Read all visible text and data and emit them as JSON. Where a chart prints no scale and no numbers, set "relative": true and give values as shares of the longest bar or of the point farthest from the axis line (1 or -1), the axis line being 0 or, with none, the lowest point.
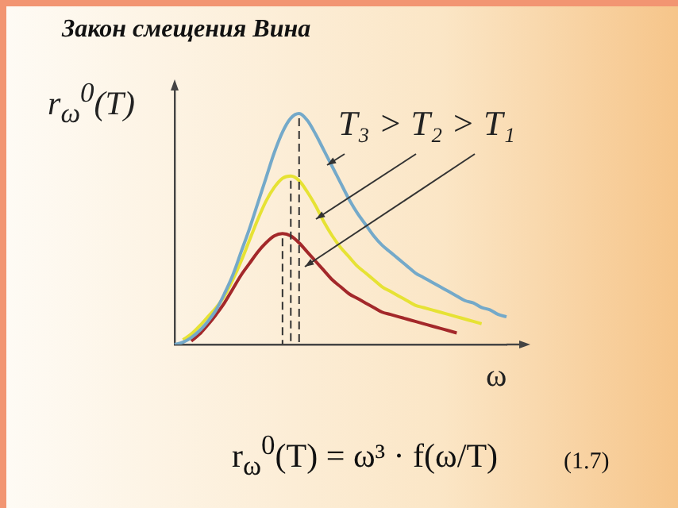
{
  "chart_data": {
    "type": "line",
    "title": "Закон смещения Вина",
    "xlabel": "ω",
    "ylabel": "r$_{ω}$$^{0}$(T)",
    "relative": true,
    "marker": "none",
    "annotations": [
      "T₃ > T₂ > T₁",
      "r$_{ω}$$^{0}$(T) = ω³ · f(ω/T)",
      "(1.7)"
    ],
    "categories": [
      null,
      null,
      null,
      null,
      null,
      null,
      null,
      null,
      null,
      null,
      null,
      null,
      null,
      null,
      null,
      null,
      null,
      null,
      null,
      null,
      null,
      null,
      null,
      null,
      null,
      null,
      null,
      null,
      null,
      null,
      null,
      null,
      null,
      null,
      null,
      null,
      null,
      null,
      null,
      null,
      null
    ],
    "series": [
      {
        "color": "#74a9c9",
        "values": [
          0,
          0.01,
          0.03,
          0.06,
          0.1,
          0.15,
          0.22,
          0.3,
          0.4,
          0.5,
          0.61,
          0.72,
          0.83,
          0.92,
          0.98,
          1,
          0.97,
          0.91,
          0.84,
          0.77,
          0.7,
          0.63,
          0.57,
          0.52,
          0.47,
          0.43,
          0.4,
          0.37,
          0.34,
          0.31,
          0.29,
          0.27,
          0.25,
          0.23,
          0.21,
          0.19,
          0.18,
          0.16,
          0.15,
          0.13,
          0.12
        ]
      },
      {
        "color": "#e6e234",
        "values": [
          null,
          0.02,
          0.045,
          0.08,
          0.12,
          0.16,
          0.21,
          0.28,
          0.36,
          0.45,
          0.54,
          0.62,
          0.68,
          0.72,
          0.73,
          0.71,
          0.66,
          0.6,
          0.53,
          0.47,
          0.42,
          0.38,
          0.34,
          0.31,
          0.28,
          0.25,
          0.23,
          0.21,
          0.19,
          0.17,
          0.16,
          0.15,
          0.14,
          0.13,
          0.12,
          0.11,
          0.1,
          0.09,
          null,
          null,
          null
        ]
      },
      {
        "color": "#a3282a",
        "values": [
          null,
          null,
          0.015,
          0.045,
          0.085,
          0.13,
          0.18,
          0.24,
          0.3,
          0.35,
          0.4,
          0.44,
          0.47,
          0.48,
          0.47,
          0.44,
          0.4,
          0.36,
          0.32,
          0.28,
          0.25,
          0.22,
          0.2,
          0.18,
          0.16,
          0.14,
          0.13,
          0.12,
          0.11,
          0.1,
          0.09,
          0.08,
          0.07,
          0.06,
          0.05,
          null,
          null,
          null,
          null,
          null,
          null
        ]
      }
    ]
  }
}
